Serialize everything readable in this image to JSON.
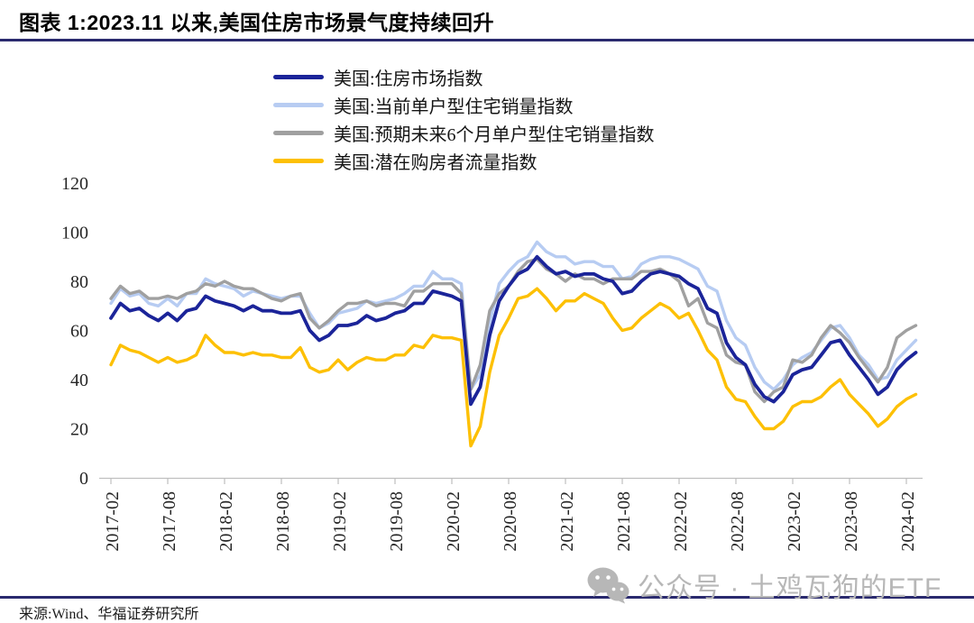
{
  "header": {
    "title": "图表 1:2023.11 以来,美国住房市场景气度持续回升"
  },
  "footer": {
    "source": "来源:Wind、华福证券研究所"
  },
  "watermark": {
    "icon": "wechat-icon",
    "text": "公众号 · 土鸡瓦狗的ETF",
    "color": "#b7b7b7"
  },
  "colors": {
    "title_rule": "#2a2a6e",
    "axis": "#bfbfbf",
    "series_navy": "#1b2499",
    "series_lightblue": "#b7ccf2",
    "series_gray": "#a0a0a0",
    "series_yellow": "#fdc004"
  },
  "chart_data": {
    "type": "line",
    "title": "图表 1:2023.11 以来,美国住房市场景气度持续回升",
    "xlabel": "",
    "ylabel": "",
    "ylim": [
      0,
      120
    ],
    "yticks": [
      0,
      20,
      40,
      60,
      80,
      100,
      120
    ],
    "grid": false,
    "legend_position": "top",
    "axis_color": "#bfbfbf",
    "x_tick_labels": [
      "2017-02",
      "2017-08",
      "2018-02",
      "2018-08",
      "2019-02",
      "2019-08",
      "2020-02",
      "2020-08",
      "2021-02",
      "2021-08",
      "2022-02",
      "2022-08",
      "2023-02",
      "2023-08",
      "2024-02"
    ],
    "x": [
      "2017-02",
      "2017-03",
      "2017-04",
      "2017-05",
      "2017-06",
      "2017-07",
      "2017-08",
      "2017-09",
      "2017-10",
      "2017-11",
      "2017-12",
      "2018-01",
      "2018-02",
      "2018-03",
      "2018-04",
      "2018-05",
      "2018-06",
      "2018-07",
      "2018-08",
      "2018-09",
      "2018-10",
      "2018-11",
      "2018-12",
      "2019-01",
      "2019-02",
      "2019-03",
      "2019-04",
      "2019-05",
      "2019-06",
      "2019-07",
      "2019-08",
      "2019-09",
      "2019-10",
      "2019-11",
      "2019-12",
      "2020-01",
      "2020-02",
      "2020-03",
      "2020-04",
      "2020-05",
      "2020-06",
      "2020-07",
      "2020-08",
      "2020-09",
      "2020-10",
      "2020-11",
      "2020-12",
      "2021-01",
      "2021-02",
      "2021-03",
      "2021-04",
      "2021-05",
      "2021-06",
      "2021-07",
      "2021-08",
      "2021-09",
      "2021-10",
      "2021-11",
      "2021-12",
      "2022-01",
      "2022-02",
      "2022-03",
      "2022-04",
      "2022-05",
      "2022-06",
      "2022-07",
      "2022-08",
      "2022-09",
      "2022-10",
      "2022-11",
      "2022-12",
      "2023-01",
      "2023-02",
      "2023-03",
      "2023-04",
      "2023-05",
      "2023-06",
      "2023-07",
      "2023-08",
      "2023-09",
      "2023-10",
      "2023-11",
      "2023-12",
      "2024-01",
      "2024-02",
      "2024-03"
    ],
    "series": [
      {
        "name": "美国:住房市场指数",
        "color": "#1b2499",
        "values": [
          65,
          71,
          68,
          69,
          66,
          64,
          67,
          64,
          68,
          69,
          74,
          72,
          71,
          70,
          68,
          70,
          68,
          68,
          67,
          67,
          68,
          60,
          56,
          58,
          62,
          62,
          63,
          66,
          64,
          65,
          67,
          68,
          71,
          71,
          76,
          75,
          74,
          72,
          30,
          37,
          58,
          72,
          78,
          83,
          85,
          90,
          86,
          83,
          84,
          82,
          83,
          83,
          81,
          80,
          75,
          76,
          80,
          83,
          84,
          83,
          82,
          79,
          77,
          69,
          67,
          55,
          49,
          46,
          38,
          33,
          31,
          35,
          42,
          44,
          45,
          50,
          55,
          56,
          50,
          45,
          40,
          34,
          37,
          44,
          48,
          51
        ]
      },
      {
        "name": "美国:当前单户型住宅销量指数",
        "color": "#b7ccf2",
        "values": [
          71,
          77,
          74,
          75,
          71,
          70,
          73,
          70,
          75,
          75,
          81,
          79,
          78,
          77,
          74,
          76,
          75,
          74,
          73,
          74,
          74,
          67,
          61,
          63,
          67,
          68,
          69,
          72,
          71,
          72,
          73,
          75,
          78,
          78,
          84,
          81,
          81,
          79,
          36,
          42,
          63,
          79,
          84,
          88,
          90,
          96,
          92,
          90,
          90,
          87,
          88,
          88,
          86,
          86,
          81,
          82,
          87,
          89,
          90,
          90,
          89,
          87,
          85,
          78,
          76,
          64,
          57,
          54,
          45,
          39,
          36,
          40,
          46,
          49,
          51,
          56,
          61,
          62,
          57,
          50,
          46,
          40,
          41,
          48,
          52,
          56
        ]
      },
      {
        "name": "美国:预期未来6个月单户型住宅销量指数",
        "color": "#a0a0a0",
        "values": [
          73,
          78,
          75,
          76,
          73,
          73,
          74,
          73,
          75,
          76,
          79,
          78,
          80,
          78,
          77,
          77,
          75,
          73,
          72,
          74,
          75,
          65,
          61,
          64,
          68,
          71,
          71,
          72,
          70,
          71,
          71,
          70,
          76,
          76,
          79,
          79,
          79,
          75,
          36,
          46,
          68,
          75,
          78,
          84,
          88,
          89,
          85,
          83,
          80,
          83,
          81,
          81,
          79,
          81,
          81,
          81,
          84,
          84,
          85,
          83,
          80,
          70,
          73,
          63,
          61,
          50,
          47,
          46,
          35,
          31,
          35,
          37,
          48,
          47,
          50,
          57,
          62,
          59,
          55,
          49,
          44,
          39,
          45,
          57,
          60,
          62
        ]
      },
      {
        "name": "美国:潜在购房者流量指数",
        "color": "#fdc004",
        "values": [
          46,
          54,
          52,
          51,
          49,
          47,
          49,
          47,
          48,
          50,
          58,
          54,
          51,
          51,
          50,
          51,
          50,
          50,
          49,
          49,
          53,
          45,
          43,
          44,
          48,
          44,
          47,
          49,
          48,
          48,
          50,
          50,
          54,
          53,
          58,
          57,
          57,
          56,
          13,
          21,
          43,
          58,
          65,
          73,
          74,
          77,
          73,
          68,
          72,
          72,
          75,
          73,
          71,
          65,
          60,
          61,
          65,
          68,
          71,
          69,
          65,
          67,
          60,
          52,
          48,
          37,
          32,
          31,
          25,
          20,
          20,
          23,
          29,
          31,
          31,
          33,
          37,
          40,
          34,
          30,
          26,
          21,
          24,
          29,
          32,
          34
        ]
      }
    ]
  }
}
